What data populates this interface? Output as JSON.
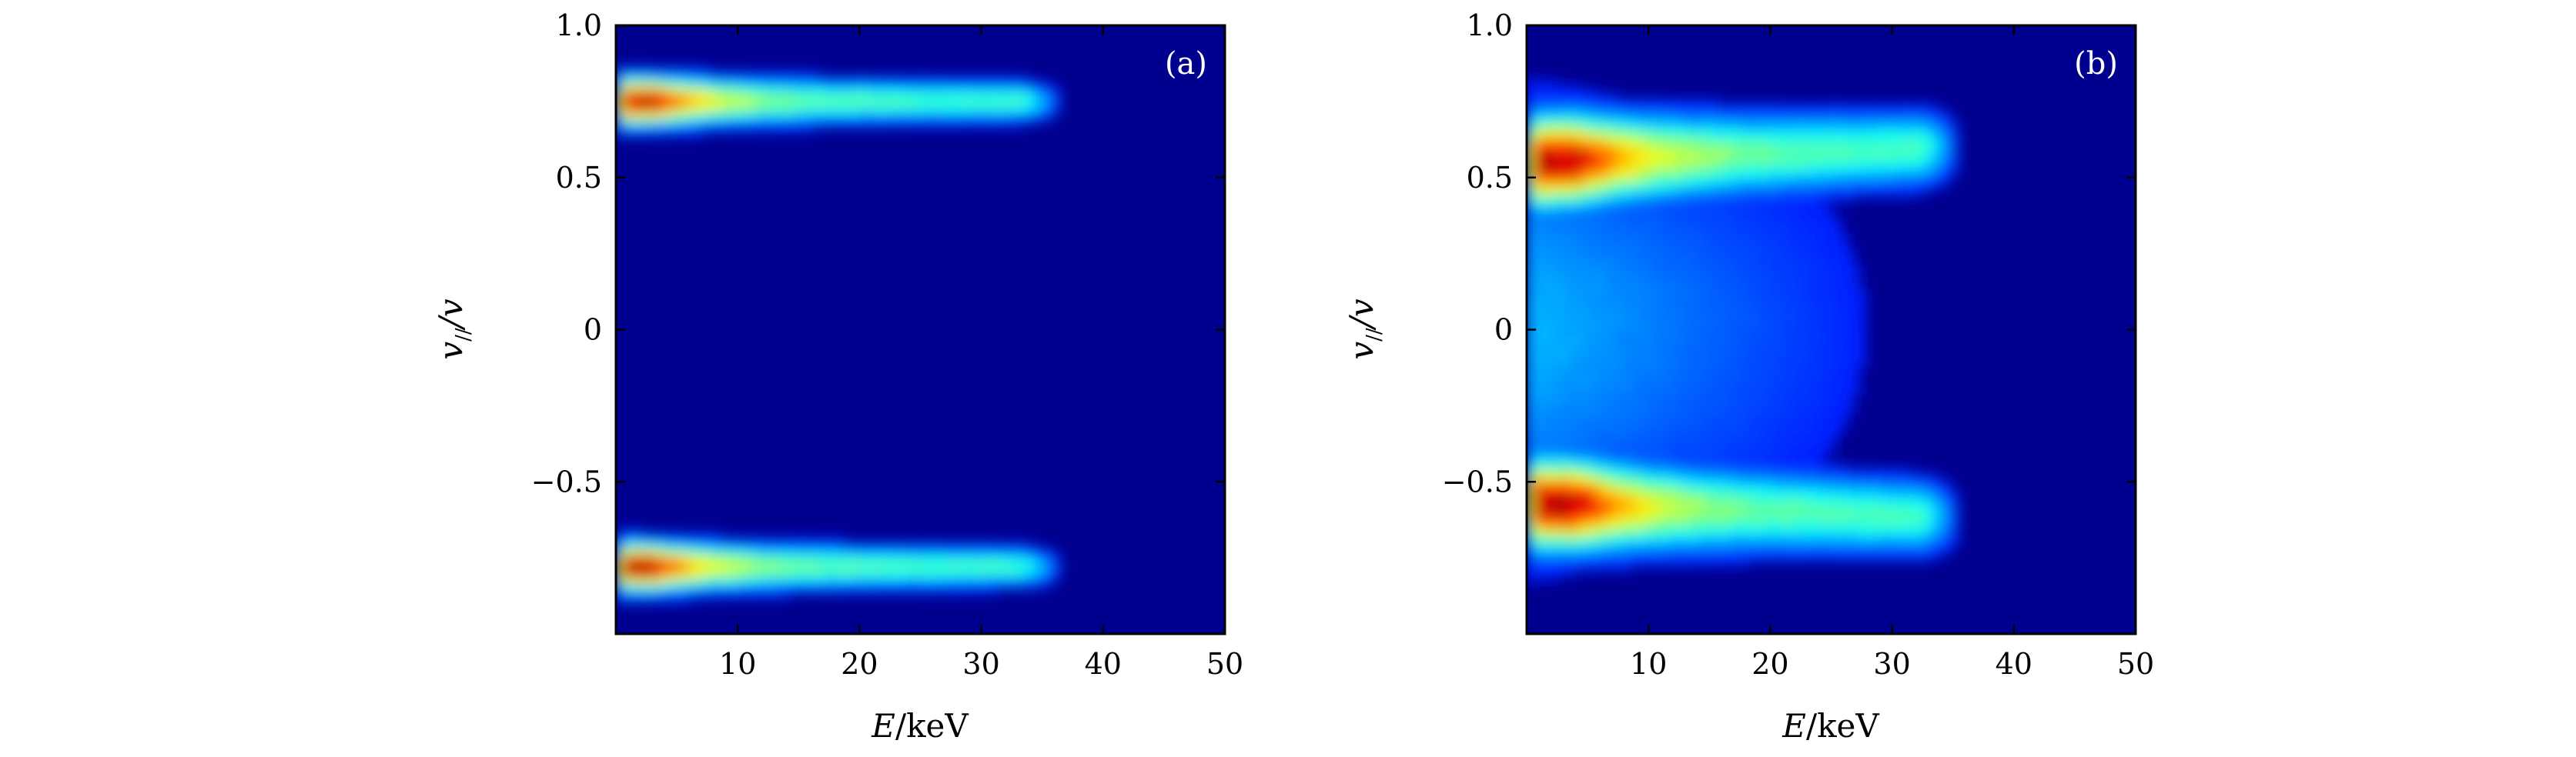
{
  "chart_data": [
    {
      "type": "heatmap",
      "panel_label": "(a)",
      "xlabel_var": "E",
      "xlabel_unit": "/keV",
      "ylabel_var": "v",
      "ylabel_sub": "//",
      "ylabel_den": "/v",
      "xlim": [
        0,
        50
      ],
      "ylim": [
        -1.0,
        1.0
      ],
      "xticks": [
        10,
        20,
        30,
        40,
        50
      ],
      "xtick_labels": [
        "10",
        "20",
        "30",
        "40",
        "50"
      ],
      "yticks": [
        1.0,
        0.5,
        0,
        -0.5
      ],
      "ytick_labels": [
        "1.0",
        "0.5",
        "0",
        "−0.5"
      ],
      "colormap": "jet",
      "background_color": "#00008f",
      "bands": [
        {
          "center_v": 0.75,
          "width_v": 0.1,
          "e_peak": 3,
          "e_end": 37
        },
        {
          "center_v": -0.78,
          "width_v": 0.1,
          "e_peak": 3,
          "e_end": 37
        }
      ]
    },
    {
      "type": "heatmap",
      "panel_label": "(b)",
      "xlabel_var": "E",
      "xlabel_unit": "/keV",
      "ylabel_var": "v",
      "ylabel_sub": "//",
      "ylabel_den": "/v",
      "xlim": [
        0,
        50
      ],
      "ylim": [
        -1.0,
        1.0
      ],
      "xticks": [
        10,
        20,
        30,
        40,
        50
      ],
      "xtick_labels": [
        "10",
        "20",
        "30",
        "40",
        "50"
      ],
      "yticks": [
        1.0,
        0.5,
        0,
        -0.5
      ],
      "ytick_labels": [
        "1.0",
        "0.5",
        "0",
        "−0.5"
      ],
      "colormap": "jet",
      "background_color": "#00008f",
      "bands": [
        {
          "center_v": 0.55,
          "width_v": 0.18,
          "e_peak": 4,
          "e_end": 36
        },
        {
          "center_v": -0.57,
          "width_v": 0.18,
          "e_peak": 4,
          "e_end": 36
        }
      ]
    }
  ]
}
